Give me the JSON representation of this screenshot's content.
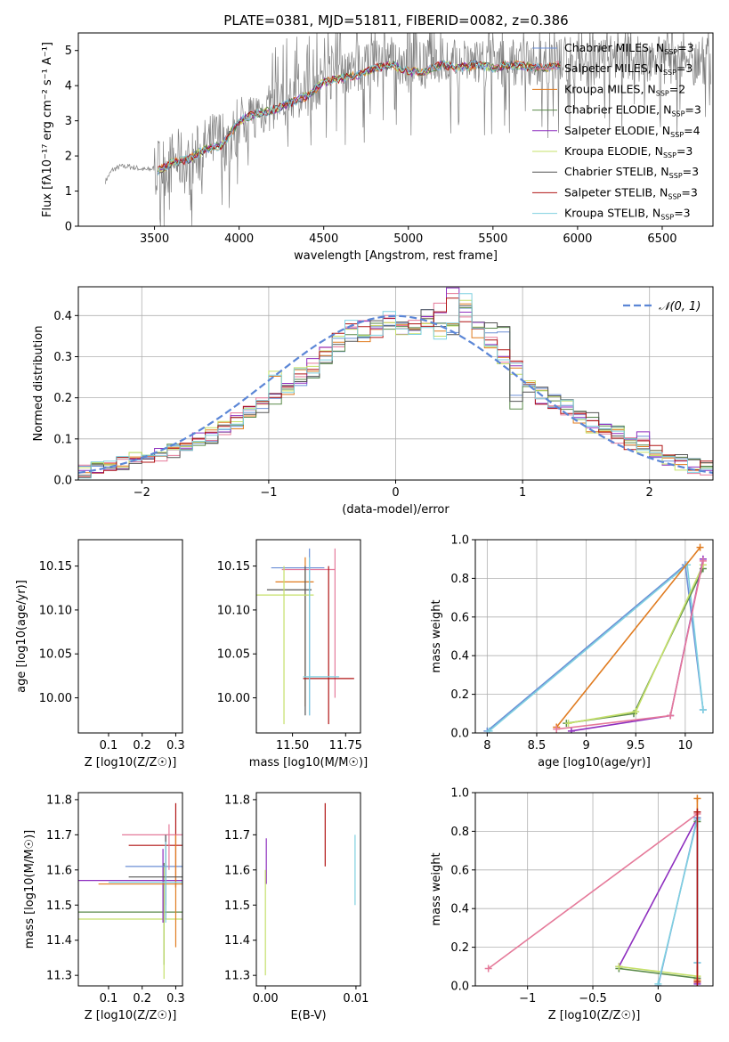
{
  "figure_title": "PLATE=0381, MJD=51811, FIBERID=0082, z=0.386",
  "colors": {
    "Chabrier MILES": "#6b8fd6",
    "Salpeter MILES": "#e57a9a",
    "Kroupa MILES": "#e07b1f",
    "Chabrier ELODIE": "#5a8a4a",
    "Salpeter ELODIE": "#8e2fbf",
    "Kroupa ELODIE": "#c5e06a",
    "Chabrier STELIB": "#555555",
    "Salpeter STELIB": "#b01414",
    "Kroupa STELIB": "#7fd0e0",
    "data": "#808080",
    "normal": "#5b86d6"
  },
  "chart_data": [
    {
      "type": "line",
      "title": "PLATE=0381, MJD=51811, FIBERID=0082, z=0.386",
      "xlabel": "wavelength [Angstrom, rest frame]",
      "ylabel": "Flux [fλ10⁻¹⁷ erg cm⁻² s⁻¹ A⁻¹]",
      "xlim": [
        3050,
        6800
      ],
      "ylim": [
        0,
        5.5
      ],
      "xticks": [
        3500,
        4000,
        4500,
        5000,
        5500,
        6000,
        6500
      ],
      "yticks": [
        0,
        1,
        2,
        3,
        4,
        5
      ],
      "legend_position": "top-right",
      "legend": [
        {
          "label": "Chabrier MILES, N_SSP=3",
          "text": "Chabrier MILES, N",
          "sub": "SSP",
          "suffix": "=3"
        },
        {
          "label": "Salpeter MILES, N_SSP=3",
          "text": "Salpeter MILES, N",
          "sub": "SSP",
          "suffix": "=3"
        },
        {
          "label": "Kroupa MILES, N_SSP=2",
          "text": "Kroupa MILES, N",
          "sub": "SSP",
          "suffix": "=2"
        },
        {
          "label": "Chabrier ELODIE, N_SSP=3",
          "text": "Chabrier ELODIE, N",
          "sub": "SSP",
          "suffix": "=3"
        },
        {
          "label": "Salpeter ELODIE, N_SSP=4",
          "text": "Salpeter ELODIE, N",
          "sub": "SSP",
          "suffix": "=4"
        },
        {
          "label": "Kroupa ELODIE, N_SSP=3",
          "text": "Kroupa ELODIE, N",
          "sub": "SSP",
          "suffix": "=3"
        },
        {
          "label": "Chabrier STELIB, N_SSP=3",
          "text": "Chabrier STELIB, N",
          "sub": "SSP",
          "suffix": "=3"
        },
        {
          "label": "Salpeter STELIB, N_SSP=3",
          "text": "Salpeter STELIB, N",
          "sub": "SSP",
          "suffix": "=3"
        },
        {
          "label": "Kroupa STELIB, N_SSP=3",
          "text": "Kroupa STELIB, N",
          "sub": "SSP",
          "suffix": "=3"
        }
      ],
      "series": [
        {
          "name": "data",
          "x": [
            3200,
            3250,
            3300,
            3350,
            3400,
            3450,
            3500,
            3550,
            3600,
            3650,
            3700,
            3750,
            3800,
            3850,
            3900,
            3950,
            4000,
            4100,
            4200,
            4300,
            4400,
            4500,
            4600,
            4700,
            4800,
            4900,
            5000,
            5100,
            5200,
            5300,
            5400,
            5500,
            5600,
            5700,
            5800,
            5900,
            6000,
            6100,
            6200,
            6300,
            6400,
            6500,
            6600,
            6700
          ],
          "y": [
            1.2,
            1.6,
            1.7,
            1.7,
            1.65,
            1.6,
            1.65,
            1.7,
            1.8,
            1.9,
            1.7,
            2.0,
            2.2,
            2.4,
            2.5,
            2.3,
            3.0,
            3.2,
            3.4,
            3.6,
            3.8,
            4.2,
            4.4,
            4.5,
            4.6,
            4.7,
            4.5,
            4.6,
            4.7,
            4.6,
            4.7,
            4.6,
            4.7,
            4.65,
            4.6,
            4.7,
            4.7,
            4.6,
            4.8,
            4.7,
            4.8,
            4.75,
            4.7,
            4.7
          ]
        },
        {
          "name": "model",
          "x": [
            3500,
            3600,
            3700,
            3800,
            3900,
            4000,
            4100,
            4200,
            4300,
            4400,
            4500,
            4600,
            4700,
            4800,
            4900,
            5000,
            5100,
            5200,
            5300,
            5400,
            5500,
            5600,
            5700,
            5800,
            5900
          ],
          "y": [
            1.5,
            1.8,
            1.9,
            2.2,
            2.3,
            3.0,
            3.2,
            3.3,
            3.5,
            3.7,
            4.1,
            4.2,
            4.3,
            4.5,
            4.6,
            4.4,
            4.4,
            4.6,
            4.5,
            4.6,
            4.5,
            4.6,
            4.55,
            4.5,
            4.6
          ]
        }
      ]
    },
    {
      "type": "histogram",
      "xlabel": "(data-model)/error",
      "ylabel": "Normed distribution",
      "xlim": [
        -2.5,
        2.5
      ],
      "ylim": [
        0,
        0.47
      ],
      "xticks": [
        -2,
        -1,
        0,
        1,
        2
      ],
      "yticks": [
        0.0,
        0.1,
        0.2,
        0.3,
        0.4
      ],
      "legend_position": "top-right",
      "legend": [
        {
          "label": "N(0,1)",
          "text": "𝒩(0, 1)"
        }
      ],
      "normal_curve": {
        "mean": 0,
        "sigma": 1
      },
      "bin_width": 0.1,
      "bin_start": -2.5,
      "series": [
        {
          "name": "Chabrier MILES",
          "values": [
            0.02,
            0.03,
            0.03,
            0.04,
            0.05,
            0.06,
            0.06,
            0.07,
            0.08,
            0.09,
            0.1,
            0.12,
            0.14,
            0.16,
            0.18,
            0.2,
            0.22,
            0.24,
            0.26,
            0.3,
            0.33,
            0.35,
            0.36,
            0.38,
            0.37,
            0.38,
            0.36,
            0.4,
            0.38,
            0.37,
            0.42,
            0.38,
            0.37,
            0.36,
            0.19,
            0.23,
            0.22,
            0.2,
            0.18,
            0.17,
            0.15,
            0.13,
            0.12,
            0.1,
            0.09,
            0.07,
            0.06,
            0.05,
            0.04,
            0.03
          ]
        },
        {
          "name": "Salpeter MILES",
          "values": [
            0.02,
            0.03,
            0.03,
            0.04,
            0.05,
            0.05,
            0.06,
            0.06,
            0.08,
            0.1,
            0.11,
            0.12,
            0.15,
            0.17,
            0.19,
            0.21,
            0.23,
            0.25,
            0.28,
            0.32,
            0.34,
            0.37,
            0.38,
            0.36,
            0.39,
            0.37,
            0.38,
            0.39,
            0.42,
            0.45,
            0.4,
            0.37,
            0.34,
            0.3,
            0.28,
            0.24,
            0.2,
            0.19,
            0.17,
            0.15,
            0.13,
            0.12,
            0.1,
            0.09,
            0.1,
            0.07,
            0.05,
            0.04,
            0.03,
            0.03
          ]
        },
        {
          "name": "Salpeter STELIB",
          "values": [
            0.02,
            0.03,
            0.04,
            0.04,
            0.05,
            0.06,
            0.07,
            0.08,
            0.08,
            0.1,
            0.11,
            0.13,
            0.14,
            0.17,
            0.2,
            0.25,
            0.22,
            0.26,
            0.27,
            0.3,
            0.35,
            0.38,
            0.34,
            0.36,
            0.4,
            0.37,
            0.37,
            0.38,
            0.35,
            0.38,
            0.44,
            0.36,
            0.33,
            0.3,
            0.27,
            0.24,
            0.21,
            0.19,
            0.18,
            0.15,
            0.13,
            0.12,
            0.11,
            0.1,
            0.08,
            0.07,
            0.05,
            0.04,
            0.03,
            0.04
          ]
        }
      ]
    },
    {
      "type": "errorbar",
      "xlabel": "Z [log10(Z/Z☉)]",
      "ylabel": "age  [log10(age/yr)]",
      "xlim": [
        0.01,
        0.32
      ],
      "ylim": [
        9.96,
        10.18
      ],
      "xticks": [
        0.1,
        0.2,
        0.3
      ],
      "yticks": [
        10.0,
        10.05,
        10.1,
        10.15
      ]
    },
    {
      "type": "errorbar",
      "xlabel": "mass [log10(M/M☉)]",
      "xlim": [
        11.33,
        11.82
      ],
      "ylim": [
        9.96,
        10.18
      ],
      "xticks": [
        11.5,
        11.75
      ],
      "xtick_labels": [
        "11.50",
        "11.75"
      ],
      "yticks": [
        10.0,
        10.05,
        10.1,
        10.15
      ]
    },
    {
      "type": "line",
      "xlabel": "age  [log10(age/yr)]",
      "ylabel": "mass weight",
      "xlim": [
        7.88,
        10.28
      ],
      "ylim": [
        0,
        1
      ],
      "xticks": [
        8.0,
        8.5,
        9.0,
        9.5,
        10.0
      ],
      "yticks": [
        0.0,
        0.2,
        0.4,
        0.6,
        0.8,
        1.0
      ]
    },
    {
      "type": "errorbar",
      "xlabel": "Z [log10(Z/Z☉)]",
      "ylabel": "mass [log10(M/M☉)]",
      "xlim": [
        0.01,
        0.32
      ],
      "ylim": [
        11.27,
        11.82
      ],
      "xticks": [
        0.1,
        0.2,
        0.3
      ],
      "yticks": [
        11.3,
        11.4,
        11.5,
        11.6,
        11.7,
        11.8
      ]
    },
    {
      "type": "errorbar",
      "xlabel": "E(B-V)",
      "xlim": [
        -0.001,
        0.0105
      ],
      "ylim": [
        11.27,
        11.82
      ],
      "xticks": [
        0.0,
        0.01
      ],
      "xtick_labels": [
        "0.00",
        "0.01"
      ],
      "yticks": [
        11.3,
        11.4,
        11.5,
        11.6,
        11.7,
        11.8
      ]
    },
    {
      "type": "line",
      "xlabel": "Z [log10(Z/Z☉)]",
      "ylabel": "mass weight",
      "xlim": [
        -1.4,
        0.42
      ],
      "ylim": [
        0,
        1
      ],
      "xticks": [
        -1.0,
        -0.5,
        0.0
      ],
      "yticks": [
        0.0,
        0.2,
        0.4,
        0.6,
        0.8,
        1.0
      ]
    }
  ]
}
